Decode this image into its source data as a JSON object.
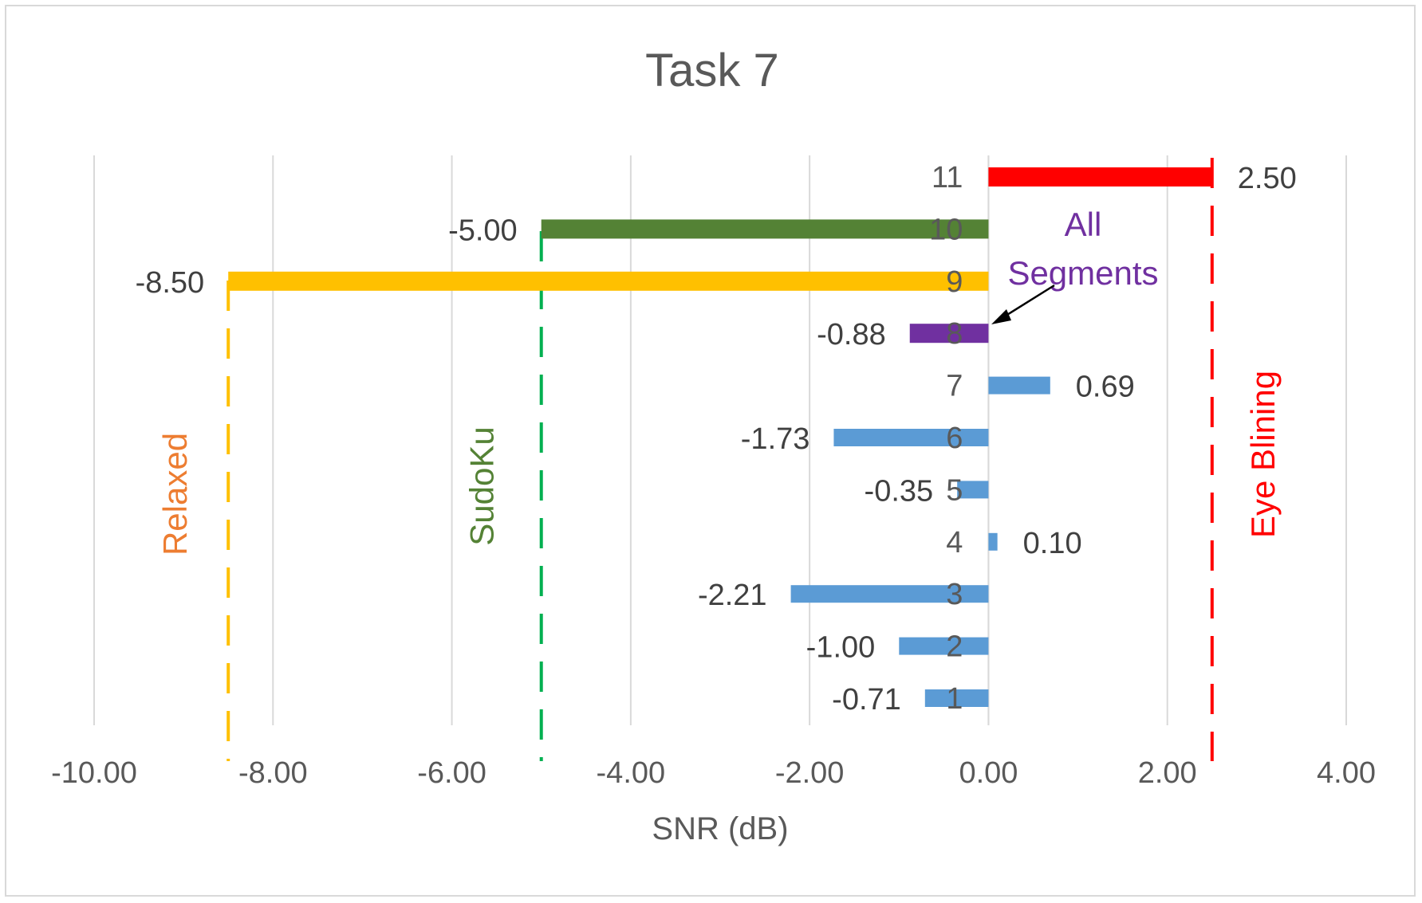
{
  "chart_data": {
    "type": "bar",
    "orientation": "horizontal",
    "title": "Task 7",
    "xlabel": "SNR (dB)",
    "ylabel": "",
    "xlim": [
      -10,
      4
    ],
    "x_ticks": [
      -10,
      -8,
      -6,
      -4,
      -2,
      0,
      2,
      4
    ],
    "x_tick_labels": [
      "-10.00",
      "-8.00",
      "-6.00",
      "-4.00",
      "-2.00",
      "0.00",
      "2.00",
      "4.00"
    ],
    "grid": true,
    "categories": [
      "1",
      "2",
      "3",
      "4",
      "5",
      "6",
      "7",
      "8",
      "9",
      "10",
      "11"
    ],
    "values": [
      -0.71,
      -1.0,
      -2.21,
      0.1,
      -0.35,
      -1.73,
      0.69,
      -0.88,
      -8.5,
      -5.0,
      2.5
    ],
    "value_labels": [
      "-0.71",
      "-1.00",
      "-2.21",
      "0.10",
      "-0.35",
      "-1.73",
      "0.69",
      "-0.88",
      "-8.50",
      "-5.00",
      "2.50"
    ],
    "bar_colors": [
      "#5b9bd5",
      "#5b9bd5",
      "#5b9bd5",
      "#5b9bd5",
      "#5b9bd5",
      "#5b9bd5",
      "#5b9bd5",
      "#7030a0",
      "#ffc000",
      "#548235",
      "#ff0000"
    ],
    "reference_lines": [
      {
        "label": "Relaxed",
        "x": -8.5,
        "color": "#ffc000",
        "label_color": "#ed7d31"
      },
      {
        "label": "SudoKu",
        "x": -5.0,
        "color": "#00b050",
        "label_color": "#548235"
      },
      {
        "label": "Eye Blining",
        "x": 2.5,
        "color": "#ff0000",
        "label_color": "#ff0000"
      }
    ],
    "annotation": {
      "label_line1": "All",
      "label_line2": "Segments",
      "color": "#7030a0",
      "points_to_category": "8"
    }
  }
}
